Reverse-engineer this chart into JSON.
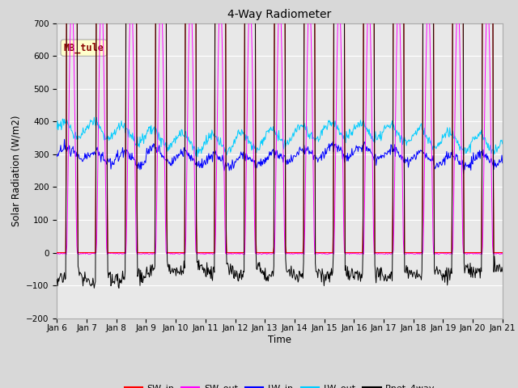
{
  "title": "4-Way Radiometer",
  "xlabel": "Time",
  "ylabel": "Solar Radiation (W/m2)",
  "ylim": [
    -200,
    700
  ],
  "yticks": [
    -200,
    -100,
    0,
    100,
    200,
    300,
    400,
    500,
    600,
    700
  ],
  "x_tick_labels": [
    "Jan 6",
    "Jan 7",
    "Jan 8",
    "Jan 9",
    "Jan 10",
    "Jan 11",
    "Jan 12",
    "Jan 13",
    "Jan 14",
    "Jan 15",
    "Jan 16",
    "Jan 17",
    "Jan 18",
    "Jan 19",
    "Jan 20",
    "Jan 21"
  ],
  "station_label": "MB_tule",
  "colors": {
    "SW_in": "#ff0000",
    "SW_out": "#ff00ff",
    "LW_in": "#0000ff",
    "LW_out": "#00ccff",
    "Rnet_4way": "#000000"
  },
  "fig_width": 6.4,
  "fig_height": 4.8,
  "dpi": 100,
  "background_color": "#d8d8d8",
  "plot_bg_color": "#e8e8e8",
  "title_fontsize": 10,
  "label_fontsize": 8.5,
  "tick_fontsize": 7.5
}
